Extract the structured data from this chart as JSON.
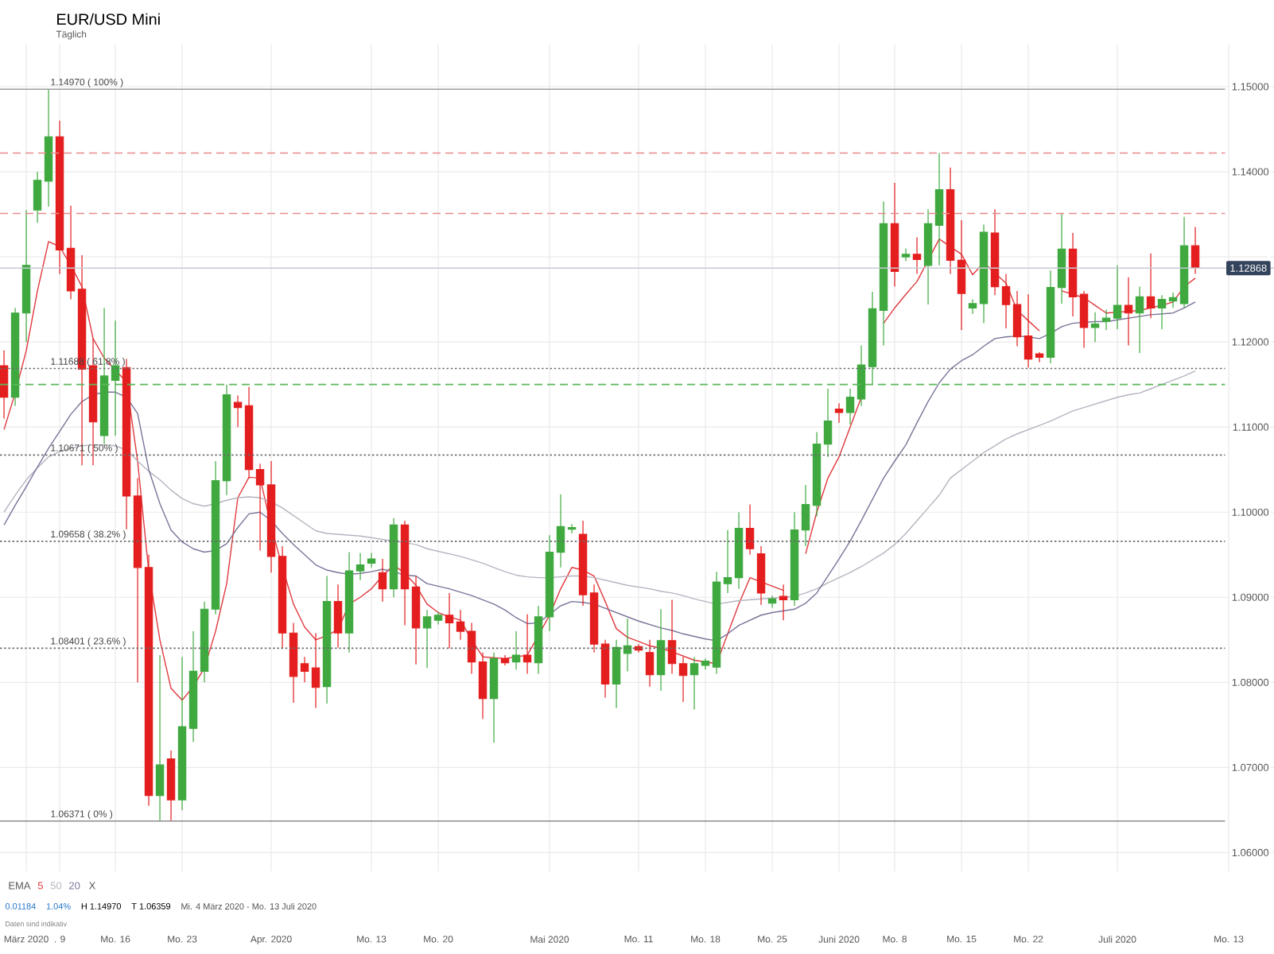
{
  "chart_data": {
    "type": "candlestick",
    "title": "EUR/USD Mini",
    "subtitle": "Täglich",
    "categories": [
      null,
      null,
      "März 2020",
      null,
      null,
      ". 9",
      null,
      null,
      null,
      null,
      "Mo. 16",
      null,
      null,
      null,
      null,
      null,
      "Mo. 23",
      null,
      null,
      null,
      null,
      null,
      null,
      null,
      "Apr. 2020",
      null,
      null,
      null,
      null,
      null,
      null,
      null,
      null,
      "Mo. 13",
      null,
      null,
      null,
      null,
      null,
      "Mo. 20",
      null,
      null,
      null,
      null,
      null,
      null,
      null,
      null,
      null,
      "Mai 2020",
      null,
      null,
      null,
      null,
      null,
      null,
      null,
      "Mo. 11",
      null,
      null,
      null,
      null,
      null,
      "Mo. 18",
      null,
      null,
      null,
      null,
      null,
      "Mo. 25",
      null,
      null,
      null,
      null,
      null,
      "Juni 2020",
      null,
      null,
      null,
      null,
      "Mo. 8",
      null,
      null,
      null,
      null,
      null,
      "Mo. 15",
      null,
      null,
      null,
      null,
      null,
      "Mo. 22",
      null,
      null,
      null,
      null,
      null,
      null,
      null,
      "Juli 2020",
      null,
      null,
      null,
      null,
      null,
      null,
      null,
      null,
      null,
      "Mo. 13"
    ],
    "ohlc": [
      [
        1.1172,
        1.119,
        1.111,
        1.1135
      ],
      [
        1.1135,
        1.124,
        1.1125,
        1.1234
      ],
      [
        1.1234,
        1.1355,
        1.12,
        1.129
      ],
      [
        1.1355,
        1.14,
        1.134,
        1.139
      ],
      [
        1.1389,
        1.1497,
        1.1359,
        1.1441
      ],
      [
        1.1441,
        1.146,
        1.128,
        1.1308
      ],
      [
        1.131,
        1.136,
        1.125,
        1.126
      ],
      [
        1.1262,
        1.1302,
        1.1055,
        1.1168
      ],
      [
        1.1172,
        1.1204,
        1.1055,
        1.1106
      ],
      [
        1.109,
        1.124,
        1.108,
        1.116
      ],
      [
        1.1155,
        1.1225,
        1.109,
        1.1172
      ],
      [
        1.117,
        1.118,
        1.098,
        1.1019
      ],
      [
        1.1019,
        1.104,
        1.08,
        1.0935
      ],
      [
        1.0935,
        1.095,
        1.0655,
        1.0667
      ],
      [
        1.0667,
        1.0832,
        1.0637,
        1.0703
      ],
      [
        1.071,
        1.072,
        1.0637,
        1.0662
      ],
      [
        1.0662,
        1.083,
        1.065,
        1.0748
      ],
      [
        1.0746,
        1.086,
        1.073,
        1.0813
      ],
      [
        1.0813,
        1.0895,
        1.08,
        1.0886
      ],
      [
        1.0886,
        1.106,
        1.088,
        1.1037
      ],
      [
        1.1037,
        1.115,
        1.102,
        1.1138
      ],
      [
        1.1129,
        1.1137,
        1.11,
        1.1123
      ],
      [
        1.1125,
        1.1147,
        1.104,
        1.105
      ],
      [
        1.105,
        1.1057,
        1.0955,
        1.1032
      ],
      [
        1.1032,
        1.106,
        1.0929,
        1.0948
      ],
      [
        1.0948,
        1.096,
        1.084,
        1.0858
      ],
      [
        1.0858,
        1.087,
        1.0776,
        1.0807
      ],
      [
        1.0822,
        1.083,
        1.08,
        1.0813
      ],
      [
        1.0817,
        1.0858,
        1.077,
        1.0794
      ],
      [
        1.0795,
        1.0925,
        1.0775,
        1.0895
      ],
      [
        1.0895,
        1.0915,
        1.0841,
        1.0858
      ],
      [
        1.0858,
        1.0953,
        1.0835,
        1.0931
      ],
      [
        1.0931,
        1.0952,
        1.092,
        1.0938
      ],
      [
        1.094,
        1.0952,
        1.0935,
        1.0945
      ],
      [
        1.0929,
        1.0945,
        1.0895,
        1.091
      ],
      [
        1.091,
        1.0993,
        1.09,
        1.0985
      ],
      [
        1.0985,
        1.099,
        1.0867,
        1.091
      ],
      [
        1.0912,
        1.0925,
        1.0821,
        1.0864
      ],
      [
        1.0864,
        1.0885,
        1.0817,
        1.0877
      ],
      [
        1.0873,
        1.0883,
        1.0868,
        1.0879
      ],
      [
        1.0879,
        1.0905,
        1.084,
        1.087
      ],
      [
        1.0871,
        1.0885,
        1.085,
        1.086
      ],
      [
        1.086,
        1.087,
        1.081,
        1.0824
      ],
      [
        1.0824,
        1.0835,
        1.0757,
        1.0781
      ],
      [
        1.0781,
        1.0835,
        1.0729,
        1.0828
      ],
      [
        1.0828,
        1.0832,
        1.082,
        1.0823
      ],
      [
        1.0824,
        1.086,
        1.0815,
        1.0832
      ],
      [
        1.0832,
        1.088,
        1.081,
        1.0824
      ],
      [
        1.0823,
        1.089,
        1.081,
        1.0877
      ],
      [
        1.0877,
        1.0973,
        1.086,
        1.0953
      ],
      [
        1.0953,
        1.1021,
        1.0935,
        1.0983
      ],
      [
        1.098,
        1.0986,
        1.0975,
        1.0982
      ],
      [
        1.0974,
        1.099,
        1.089,
        1.0903
      ],
      [
        1.0905,
        1.0915,
        1.0835,
        1.0845
      ],
      [
        1.0845,
        1.085,
        1.0782,
        1.0798
      ],
      [
        1.0798,
        1.085,
        1.077,
        1.0841
      ],
      [
        1.0834,
        1.0875,
        1.0813,
        1.0843
      ],
      [
        1.0842,
        1.0845,
        1.0835,
        1.0838
      ],
      [
        1.0835,
        1.085,
        1.0795,
        1.0809
      ],
      [
        1.0809,
        1.0886,
        1.079,
        1.0849
      ],
      [
        1.0849,
        1.0897,
        1.081,
        1.0822
      ],
      [
        1.0822,
        1.083,
        1.0777,
        1.0808
      ],
      [
        1.0809,
        1.083,
        1.0768,
        1.0822
      ],
      [
        1.082,
        1.0828,
        1.0815,
        1.0825
      ],
      [
        1.0818,
        1.093,
        1.081,
        1.0918
      ],
      [
        1.0916,
        1.0979,
        1.0905,
        1.0923
      ],
      [
        1.0923,
        1.1,
        1.091,
        1.0981
      ],
      [
        1.0981,
        1.1009,
        1.095,
        1.0957
      ],
      [
        1.0951,
        1.096,
        1.0891,
        1.0905
      ],
      [
        1.0893,
        1.0902,
        1.0888,
        1.0898
      ],
      [
        1.0901,
        1.0915,
        1.0873,
        1.0897
      ],
      [
        1.0897,
        1.1,
        1.089,
        1.0979
      ],
      [
        1.0979,
        1.1032,
        1.096,
        1.1009
      ],
      [
        1.1008,
        1.1094,
        1.0995,
        1.108
      ],
      [
        1.108,
        1.1145,
        1.1065,
        1.1107
      ],
      [
        1.1121,
        1.1128,
        1.1105,
        1.1117
      ],
      [
        1.1117,
        1.1145,
        1.1103,
        1.1135
      ],
      [
        1.1133,
        1.1196,
        1.1125,
        1.1173
      ],
      [
        1.1171,
        1.1259,
        1.115,
        1.1239
      ],
      [
        1.1237,
        1.1365,
        1.1196,
        1.1339
      ],
      [
        1.1339,
        1.1387,
        1.1265,
        1.1283
      ],
      [
        1.13,
        1.131,
        1.1295,
        1.1303
      ],
      [
        1.1303,
        1.1323,
        1.128,
        1.1297
      ],
      [
        1.129,
        1.1356,
        1.1244,
        1.1339
      ],
      [
        1.1337,
        1.1422,
        1.129,
        1.1379
      ],
      [
        1.1379,
        1.1405,
        1.128,
        1.1296
      ],
      [
        1.1296,
        1.1343,
        1.1214,
        1.1257
      ],
      [
        1.124,
        1.125,
        1.1233,
        1.1245
      ],
      [
        1.1245,
        1.1338,
        1.1222,
        1.1329
      ],
      [
        1.1328,
        1.1356,
        1.1255,
        1.1265
      ],
      [
        1.1265,
        1.128,
        1.1216,
        1.1244
      ],
      [
        1.1244,
        1.126,
        1.1195,
        1.1206
      ],
      [
        1.1207,
        1.1256,
        1.117,
        1.118
      ],
      [
        1.1186,
        1.1188,
        1.1176,
        1.1182
      ],
      [
        1.1182,
        1.1284,
        1.1175,
        1.1264
      ],
      [
        1.1264,
        1.1351,
        1.1245,
        1.1309
      ],
      [
        1.1309,
        1.1328,
        1.123,
        1.1253
      ],
      [
        1.1256,
        1.126,
        1.1193,
        1.1217
      ],
      [
        1.1217,
        1.1235,
        1.12,
        1.1221
      ],
      [
        1.1224,
        1.1238,
        1.1214,
        1.1228
      ],
      [
        1.1228,
        1.129,
        1.1215,
        1.1243
      ],
      [
        1.1243,
        1.1276,
        1.1196,
        1.1234
      ],
      [
        1.1234,
        1.1265,
        1.1187,
        1.1253
      ],
      [
        1.1253,
        1.1304,
        1.1228,
        1.124
      ],
      [
        1.124,
        1.1255,
        1.1215,
        1.125
      ],
      [
        1.1248,
        1.1258,
        1.124,
        1.1252
      ],
      [
        1.1245,
        1.1347,
        1.124,
        1.1313
      ],
      [
        1.1313,
        1.1335,
        1.128,
        1.1287
      ],
      null,
      null,
      null
    ],
    "colors": [
      "#e41e1e",
      "#3fa93f",
      "#3fa93f",
      "#3fa93f",
      "#3fa93f",
      "#e41e1e",
      "#e41e1e",
      "#e41e1e",
      "#e41e1e",
      "#3fa93f",
      "#3fa93f",
      "#e41e1e",
      "#e41e1e",
      "#e41e1e",
      "#3fa93f",
      "#e41e1e",
      "#3fa93f",
      "#3fa93f",
      "#3fa93f",
      "#3fa93f",
      "#3fa93f",
      "#e41e1e",
      "#e41e1e",
      "#e41e1e",
      "#e41e1e",
      "#e41e1e",
      "#e41e1e",
      "#e41e1e",
      "#e41e1e",
      "#3fa93f",
      "#e41e1e",
      "#3fa93f",
      "#3fa93f",
      "#3fa93f",
      "#e41e1e",
      "#3fa93f",
      "#e41e1e",
      "#e41e1e",
      "#3fa93f",
      "#3fa93f",
      "#e41e1e",
      "#e41e1e",
      "#e41e1e",
      "#e41e1e",
      "#3fa93f",
      "#e41e1e",
      "#3fa93f",
      "#e41e1e",
      "#3fa93f",
      "#3fa93f",
      "#3fa93f",
      "#3fa93f",
      "#e41e1e",
      "#e41e1e",
      "#e41e1e",
      "#3fa93f",
      "#3fa93f",
      "#e41e1e",
      "#e41e1e",
      "#3fa93f",
      "#e41e1e",
      "#e41e1e",
      "#3fa93f",
      "#3fa93f",
      "#3fa93f",
      "#3fa93f",
      "#3fa93f",
      "#e41e1e",
      "#e41e1e",
      "#3fa93f",
      "#e41e1e",
      "#3fa93f",
      "#3fa93f",
      "#3fa93f",
      "#3fa93f",
      "#e41e1e",
      "#3fa93f",
      "#3fa93f",
      "#3fa93f",
      "#3fa93f",
      "#e41e1e",
      "#3fa93f",
      "#e41e1e",
      "#3fa93f",
      "#3fa93f",
      "#e41e1e",
      "#e41e1e",
      "#3fa93f",
      "#3fa93f",
      "#e41e1e",
      "#e41e1e",
      "#e41e1e",
      "#e41e1e",
      "#e41e1e",
      "#3fa93f",
      "#3fa93f",
      "#e41e1e",
      "#e41e1e",
      "#3fa93f",
      "#3fa93f",
      "#3fa93f",
      "#e41e1e",
      "#3fa93f",
      "#e41e1e",
      "#3fa93f",
      "#3fa93f",
      "#3fa93f",
      "#e41e1e",
      null,
      null,
      null
    ],
    "series": [
      {
        "name": "5",
        "type": "line",
        "color": "#e0393e",
        "values": [
          1.1097,
          1.114,
          1.119,
          1.126,
          1.1318,
          1.1312,
          1.129,
          1.1265,
          1.1204,
          1.1181,
          1.1167,
          1.1153,
          1.106,
          1.093,
          1.085,
          1.0793,
          1.0779,
          1.0795,
          1.0817,
          1.086,
          1.0916,
          1.1017,
          1.1041,
          1.104,
          1.0983,
          1.0935,
          1.0892,
          1.0865,
          1.085,
          1.0855,
          1.0862,
          1.0892,
          1.09,
          1.091,
          1.0925,
          1.0938,
          1.0928,
          1.0914,
          1.0892,
          1.0882,
          1.0877,
          1.0873,
          1.085,
          1.083,
          1.0829,
          1.0828,
          1.083,
          1.0832,
          1.0855,
          1.0879,
          1.091,
          1.0935,
          1.0932,
          1.0925,
          1.0895,
          1.0863,
          1.0853,
          1.0848,
          1.0843,
          1.084,
          1.0836,
          1.0831,
          1.0826,
          1.0824,
          1.0822,
          1.0857,
          1.0892,
          1.0923,
          1.0918,
          1.0913,
          1.0908,
          null,
          1.0951,
          1.1,
          1.104,
          1.1065,
          1.11,
          1.1135,
          null,
          1.1222,
          1.124,
          1.1256,
          1.1271,
          1.1296,
          1.1321,
          1.1312,
          1.1303,
          1.1279,
          1.1293,
          1.1281,
          1.1269,
          1.1237,
          1.1225,
          1.1213,
          null,
          1.126,
          1.1256,
          1.1252,
          1.1243,
          1.1234,
          1.1235,
          1.1236,
          1.1237,
          1.124,
          1.1243,
          1.1247,
          1.1265,
          1.1275,
          null,
          null,
          null
        ]
      },
      {
        "name": "50",
        "type": "line",
        "color": "#b4b4c0",
        "values": [
          1.1,
          1.102,
          1.1038,
          1.1052,
          1.1065,
          1.1071,
          1.1075,
          1.1078,
          1.1079,
          1.1079,
          1.1078,
          1.1073,
          1.106,
          1.1048,
          1.1038,
          1.1026,
          1.1016,
          1.101,
          1.1007,
          1.101,
          1.1014,
          1.1017,
          1.1018,
          1.1017,
          1.1012,
          1.1005,
          1.0996,
          1.0987,
          1.0978,
          1.0975,
          1.0974,
          1.0973,
          1.0972,
          1.097,
          1.0968,
          1.0966,
          1.0964,
          1.0962,
          1.0957,
          1.0954,
          1.0951,
          1.0948,
          1.0944,
          1.094,
          1.0935,
          1.093,
          1.0926,
          1.0924,
          1.0923,
          1.0923,
          1.0924,
          1.0925,
          1.0925,
          1.0923,
          1.092,
          1.0917,
          1.0914,
          1.0912,
          1.091,
          1.0907,
          1.0905,
          1.0902,
          1.0898,
          1.0895,
          1.0892,
          1.0894,
          1.0896,
          1.0897,
          1.0898,
          1.0899,
          1.09,
          1.0901,
          1.0905,
          1.091,
          1.0917,
          1.0923,
          1.0929,
          1.0936,
          1.0944,
          1.0952,
          1.0962,
          1.0975,
          1.099,
          1.1005,
          1.102,
          1.104,
          1.105,
          1.106,
          1.107,
          1.1078,
          1.1086,
          1.1092,
          1.1097,
          1.1102,
          1.1107,
          1.1113,
          1.1119,
          1.1123,
          1.1127,
          1.1131,
          1.1135,
          1.1138,
          1.114,
          1.1145,
          1.115,
          1.1155,
          1.116,
          1.1166,
          null,
          null,
          null
        ]
      },
      {
        "name": "20",
        "type": "line",
        "color": "#7a7499",
        "values": [
          1.0985,
          1.1008,
          1.103,
          1.1053,
          1.1075,
          1.1095,
          1.1115,
          1.113,
          1.1138,
          1.1141,
          1.1141,
          1.1135,
          1.1116,
          1.105,
          1.101,
          1.0979,
          1.0965,
          1.0957,
          1.0953,
          1.0955,
          1.0963,
          1.0982,
          1.0998,
          1.1,
          1.099,
          1.0975,
          1.0962,
          1.095,
          1.0938,
          1.0932,
          1.0929,
          1.0927,
          1.0928,
          1.093,
          1.0933,
          1.093,
          1.0926,
          1.0925,
          1.0916,
          1.0913,
          1.091,
          1.0906,
          1.0902,
          1.0897,
          1.0892,
          1.0885,
          1.0876,
          1.0869,
          1.087,
          1.088,
          1.089,
          1.0895,
          1.0894,
          1.0892,
          1.0887,
          1.0882,
          1.0877,
          1.0872,
          1.0868,
          1.0864,
          1.0861,
          1.0857,
          1.0854,
          1.0851,
          1.0849,
          1.0857,
          1.0867,
          1.0873,
          1.0879,
          1.0882,
          1.0884,
          1.0886,
          1.0893,
          1.0905,
          1.0925,
          1.0945,
          1.0966,
          1.099,
          1.1015,
          1.104,
          1.106,
          1.1079,
          1.1105,
          1.113,
          1.1152,
          1.1168,
          1.1178,
          1.1185,
          1.1195,
          1.1204,
          1.1206,
          1.1207,
          1.1206,
          1.1204,
          1.121,
          1.1218,
          1.1222,
          1.1223,
          1.1224,
          1.1224,
          1.1226,
          1.1228,
          1.123,
          1.1232,
          1.1233,
          1.1234,
          1.124,
          1.1247,
          null,
          null,
          null
        ]
      }
    ],
    "legend_title": "EMA",
    "legend": "bottom left",
    "grid": true,
    "ylim": [
      1.0578,
      1.155
    ],
    "yticks": [
      {
        "value": 1.06,
        "label": "1.06000"
      },
      {
        "value": 1.07,
        "label": "1.07000"
      },
      {
        "value": 1.08,
        "label": "1.08000"
      },
      {
        "value": 1.09,
        "label": "1.09000"
      },
      {
        "value": 1.1,
        "label": "1.10000"
      },
      {
        "value": 1.11,
        "label": "1.11000"
      },
      {
        "value": 1.12,
        "label": "1.12000"
      },
      {
        "value": 1.13,
        "label": null
      },
      {
        "value": 1.14,
        "label": "1.14000"
      },
      {
        "value": 1.15,
        "label": "1.15000"
      }
    ],
    "ref_lines": [
      {
        "axis": "y",
        "value": 1.1497,
        "label": "1.14970 ( 100% )",
        "color": "#9e9e9e",
        "line_style": "solid"
      },
      {
        "axis": "y",
        "value": 1.11688,
        "label": "1.11688 ( 61.8% )",
        "color": "#6b6b6b",
        "line_style": "dotted"
      },
      {
        "axis": "y",
        "value": 1.10671,
        "label": "1.10671 ( 50% )",
        "color": "#6b6b6b",
        "line_style": "dotted"
      },
      {
        "axis": "y",
        "value": 1.09658,
        "label": "1.09658 ( 38.2% )",
        "color": "#6b6b6b",
        "line_style": "dotted"
      },
      {
        "axis": "y",
        "value": 1.08401,
        "label": "1.08401 ( 23.6% )",
        "color": "#6b6b6b",
        "line_style": "dotted"
      },
      {
        "axis": "y",
        "value": 1.06371,
        "label": "1.06371 ( 0% )",
        "color": "#8c8c8c",
        "line_style": "solid"
      },
      {
        "axis": "y",
        "value": 1.12868,
        "label": "1.12868",
        "color": "#c5cad3"
      },
      {
        "axis": "y",
        "value": 1.1422,
        "color": "#e88a8a",
        "line_style": "dashed"
      },
      {
        "axis": "y",
        "value": 1.1351,
        "color": "#e88a8a",
        "line_style": "dashed"
      },
      {
        "axis": "y",
        "value": 1.115,
        "color": "#5cb85c",
        "line_style": "dashed"
      }
    ],
    "annotations": [
      "X",
      "0.01184",
      "1.04%",
      "H 1.14970",
      "T 1.06359",
      "Mi. 4 März 2020 - Mo. 13 Juli 2020",
      "Daten sind indikativ"
    ]
  }
}
